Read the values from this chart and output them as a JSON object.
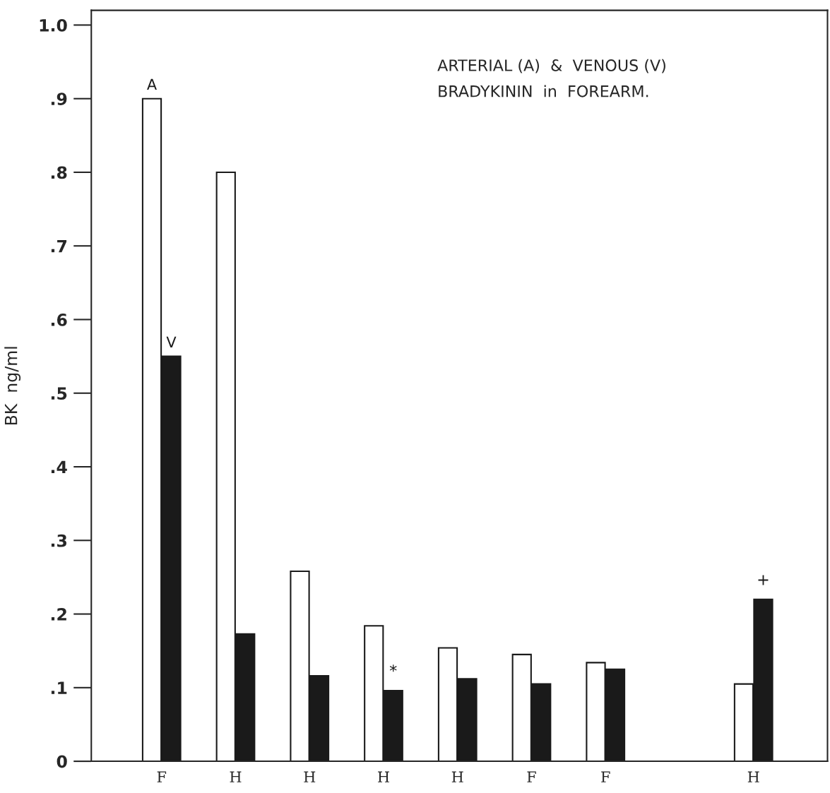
{
  "chart_data": {
    "type": "bar",
    "title": "ARTERIAL (A)  &  VENOUS (V)\nBRADYKININ  in  FOREARM.",
    "ylabel": "BK  ng/ml",
    "categories": [
      "F",
      "H",
      "H",
      "H",
      "H",
      "F",
      "F",
      null,
      "H"
    ],
    "series": [
      {
        "name": "A",
        "color": "#ffffff",
        "values": [
          0.9,
          0.8,
          0.258,
          0.184,
          0.154,
          0.145,
          0.134,
          null,
          0.105
        ]
      },
      {
        "name": "V",
        "color": "#1a1a1a",
        "values": [
          0.55,
          0.173,
          0.116,
          0.096,
          0.112,
          0.105,
          0.125,
          null,
          0.22
        ],
        "value_labels": [
          null,
          null,
          null,
          "*",
          null,
          null,
          null,
          null,
          "+"
        ]
      }
    ],
    "ylim": [
      0,
      1.02
    ],
    "yticks": [
      0,
      {
        "value": 0.1,
        "label": ".1"
      },
      {
        "value": 0.2,
        "label": ".2"
      },
      {
        "value": 0.3,
        "label": ".3"
      },
      {
        "value": 0.4,
        "label": ".4"
      },
      {
        "value": 0.5,
        "label": ".5"
      },
      {
        "value": 0.6,
        "label": ".6"
      },
      {
        "value": 0.7,
        "label": ".7"
      },
      {
        "value": 0.8,
        "label": ".8"
      },
      {
        "value": 0.9,
        "label": ".9"
      },
      {
        "value": 1.0,
        "label": "1.0"
      }
    ],
    "grid": false,
    "legend": false
  }
}
